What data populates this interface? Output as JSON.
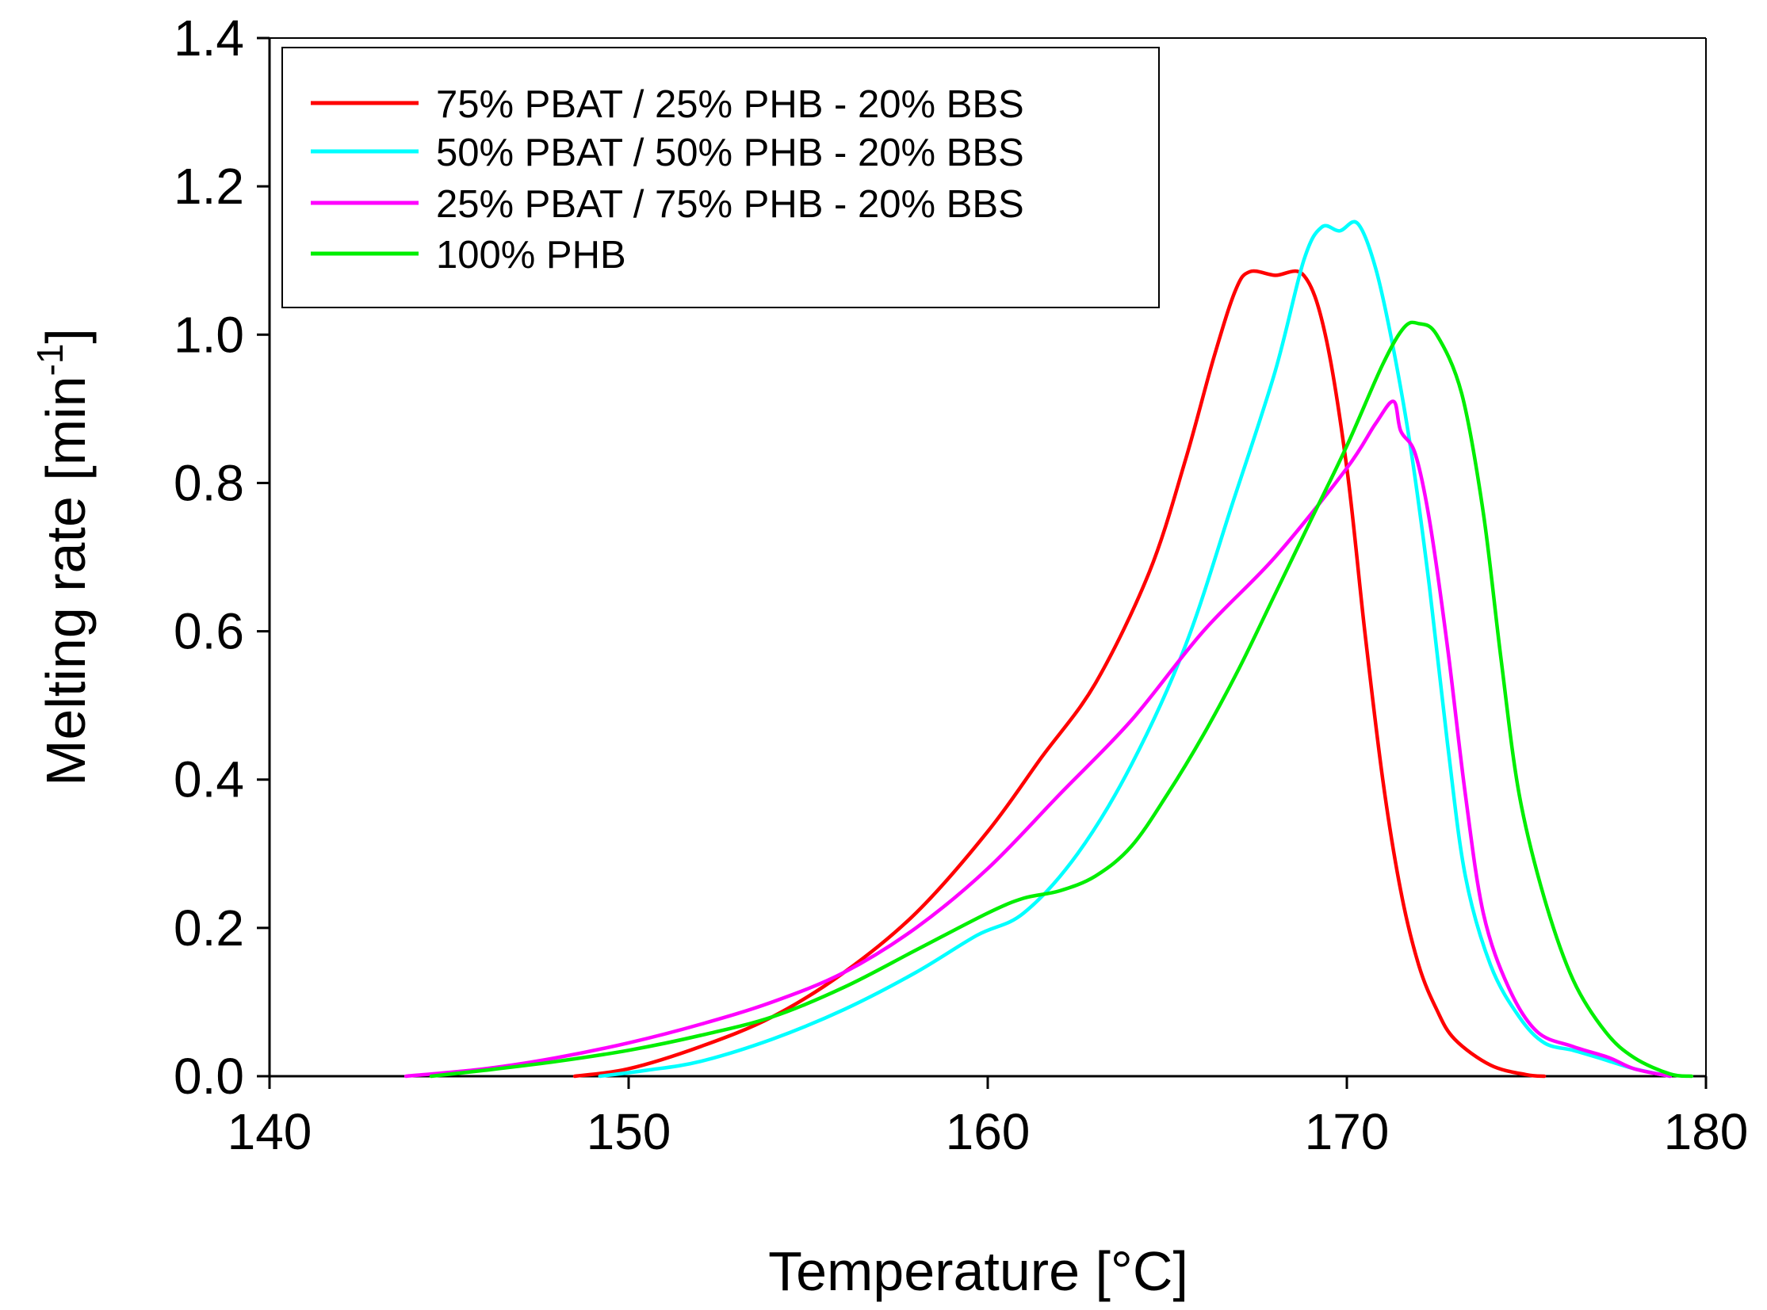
{
  "chart_data": {
    "type": "line",
    "title": "",
    "xlabel": "Temperature [°C]",
    "ylabel": "Melting rate [min",
    "ylabel_superscript": "-1",
    "ylabel_close": "]",
    "xlim": [
      140,
      180
    ],
    "ylim": [
      0,
      1.4
    ],
    "x_ticks": [
      "140",
      "150",
      "160",
      "170",
      "180"
    ],
    "x_tick_values": [
      140,
      150,
      160,
      170,
      180
    ],
    "y_ticks": [
      "0.0",
      "0.2",
      "0.4",
      "0.6",
      "0.8",
      "1.0",
      "1.2",
      "1.4"
    ],
    "y_tick_values": [
      0,
      0.2,
      0.4,
      0.6,
      0.8,
      1.0,
      1.2,
      1.4
    ],
    "grid": false,
    "legend_position": "top-left",
    "series": [
      {
        "name": "75% PBAT / 25% PHB - 20% BBS",
        "color": "#ff0000",
        "points": [
          [
            148.5,
            0
          ],
          [
            150,
            0.01
          ],
          [
            152,
            0.04
          ],
          [
            154,
            0.08
          ],
          [
            156,
            0.14
          ],
          [
            158,
            0.22
          ],
          [
            160,
            0.33
          ],
          [
            161.5,
            0.43
          ],
          [
            163,
            0.53
          ],
          [
            164.5,
            0.68
          ],
          [
            165.5,
            0.83
          ],
          [
            166.3,
            0.97
          ],
          [
            166.9,
            1.06
          ],
          [
            167.3,
            1.085
          ],
          [
            168,
            1.08
          ],
          [
            168.8,
            1.08
          ],
          [
            169.4,
            1.0
          ],
          [
            170,
            0.82
          ],
          [
            170.5,
            0.6
          ],
          [
            171,
            0.4
          ],
          [
            171.5,
            0.25
          ],
          [
            172,
            0.15
          ],
          [
            172.5,
            0.09
          ],
          [
            173,
            0.05
          ],
          [
            174,
            0.015
          ],
          [
            175,
            0.002
          ],
          [
            175.5,
            0
          ]
        ]
      },
      {
        "name": "50% PBAT / 50% PHB - 20% BBS",
        "color": "#00ffff",
        "points": [
          [
            149.2,
            0
          ],
          [
            150.5,
            0.008
          ],
          [
            152,
            0.02
          ],
          [
            154,
            0.05
          ],
          [
            156,
            0.09
          ],
          [
            158,
            0.14
          ],
          [
            159.7,
            0.19
          ],
          [
            161,
            0.22
          ],
          [
            162.5,
            0.3
          ],
          [
            164,
            0.42
          ],
          [
            165.5,
            0.58
          ],
          [
            166.8,
            0.77
          ],
          [
            168,
            0.95
          ],
          [
            168.8,
            1.1
          ],
          [
            169.3,
            1.145
          ],
          [
            169.8,
            1.14
          ],
          [
            170.3,
            1.15
          ],
          [
            170.8,
            1.09
          ],
          [
            171.3,
            0.98
          ],
          [
            171.8,
            0.84
          ],
          [
            172.3,
            0.66
          ],
          [
            172.8,
            0.45
          ],
          [
            173.3,
            0.27
          ],
          [
            174,
            0.15
          ],
          [
            174.8,
            0.08
          ],
          [
            175.5,
            0.045
          ],
          [
            176.3,
            0.035
          ],
          [
            177,
            0.025
          ],
          [
            178,
            0.01
          ],
          [
            179,
            0
          ]
        ]
      },
      {
        "name": "25% PBAT / 75% PHB - 20% BBS",
        "color": "#ff00ff",
        "points": [
          [
            143.8,
            0
          ],
          [
            146,
            0.01
          ],
          [
            148,
            0.025
          ],
          [
            150,
            0.045
          ],
          [
            152,
            0.07
          ],
          [
            154,
            0.1
          ],
          [
            156,
            0.14
          ],
          [
            158,
            0.2
          ],
          [
            160,
            0.28
          ],
          [
            162,
            0.38
          ],
          [
            164,
            0.48
          ],
          [
            166,
            0.6
          ],
          [
            168,
            0.7
          ],
          [
            170,
            0.82
          ],
          [
            170.8,
            0.88
          ],
          [
            171.3,
            0.91
          ],
          [
            171.5,
            0.87
          ],
          [
            171.9,
            0.84
          ],
          [
            172.3,
            0.75
          ],
          [
            172.8,
            0.58
          ],
          [
            173.3,
            0.38
          ],
          [
            173.8,
            0.22
          ],
          [
            174.5,
            0.12
          ],
          [
            175.3,
            0.06
          ],
          [
            176.3,
            0.04
          ],
          [
            177.3,
            0.025
          ],
          [
            178,
            0.01
          ],
          [
            179,
            0
          ]
        ]
      },
      {
        "name": "100% PHB",
        "color": "#00ee00",
        "points": [
          [
            144.5,
            0
          ],
          [
            146,
            0.008
          ],
          [
            148,
            0.02
          ],
          [
            150,
            0.035
          ],
          [
            152,
            0.055
          ],
          [
            154,
            0.08
          ],
          [
            156,
            0.12
          ],
          [
            158,
            0.17
          ],
          [
            160,
            0.22
          ],
          [
            161,
            0.24
          ],
          [
            162,
            0.25
          ],
          [
            163,
            0.27
          ],
          [
            164,
            0.31
          ],
          [
            165,
            0.38
          ],
          [
            166,
            0.46
          ],
          [
            167,
            0.55
          ],
          [
            168,
            0.65
          ],
          [
            169,
            0.75
          ],
          [
            170,
            0.85
          ],
          [
            171,
            0.96
          ],
          [
            171.6,
            1.01
          ],
          [
            172,
            1.015
          ],
          [
            172.5,
            1.0
          ],
          [
            173.2,
            0.92
          ],
          [
            173.8,
            0.76
          ],
          [
            174.3,
            0.56
          ],
          [
            174.8,
            0.38
          ],
          [
            175.5,
            0.24
          ],
          [
            176.3,
            0.13
          ],
          [
            177.2,
            0.06
          ],
          [
            178,
            0.025
          ],
          [
            179,
            0.003
          ],
          [
            179.6,
            0
          ]
        ]
      }
    ]
  }
}
